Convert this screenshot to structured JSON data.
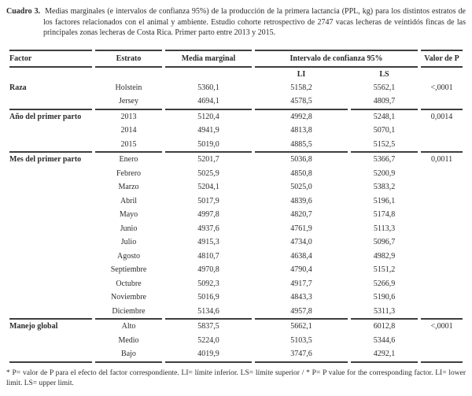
{
  "caption": {
    "label": "Cuadro 3.",
    "text": "Medias marginales (e intervalos de confianza 95%) de la producción de la primera lactancia (PPL, kg) para los distintos estratos de los factores relacionados con el animal y ambiente. Estudio cohorte retrospectivo de 2747 vacas lecheras de veintidós fincas de las principales zonas lecheras de Costa Rica. Primer parto entre 2013 y 2015."
  },
  "table": {
    "headers": {
      "factor": "Factor",
      "estrato": "Estrato",
      "media": "Media marginal",
      "ic": "Intervalo de confianza 95%",
      "li": "LI",
      "ls": "LS",
      "p": "Valor de P"
    },
    "sections": [
      {
        "factor": "Raza",
        "rows": [
          {
            "estrato": "Holstein",
            "media": "5360,1",
            "li": "5158,2",
            "ls": "5562,1",
            "p": "<,0001"
          },
          {
            "estrato": "Jersey",
            "media": "4694,1",
            "li": "4578,5",
            "ls": "4809,7",
            "p": ""
          }
        ]
      },
      {
        "factor": "Año del primer parto",
        "rows": [
          {
            "estrato": "2013",
            "media": "5120,4",
            "li": "4992,8",
            "ls": "5248,1",
            "p": "0,0014"
          },
          {
            "estrato": "2014",
            "media": "4941,9",
            "li": "4813,8",
            "ls": "5070,1",
            "p": ""
          },
          {
            "estrato": "2015",
            "media": "5019,0",
            "li": "4885,5",
            "ls": "5152,5",
            "p": ""
          }
        ]
      },
      {
        "factor": "Mes del primer parto",
        "rows": [
          {
            "estrato": "Enero",
            "media": "5201,7",
            "li": "5036,8",
            "ls": "5366,7",
            "p": "0,0011"
          },
          {
            "estrato": "Febrero",
            "media": "5025,9",
            "li": "4850,8",
            "ls": "5200,9",
            "p": ""
          },
          {
            "estrato": "Marzo",
            "media": "5204,1",
            "li": "5025,0",
            "ls": "5383,2",
            "p": ""
          },
          {
            "estrato": "Abril",
            "media": "5017,9",
            "li": "4839,6",
            "ls": "5196,1",
            "p": ""
          },
          {
            "estrato": "Mayo",
            "media": "4997,8",
            "li": "4820,7",
            "ls": "5174,8",
            "p": ""
          },
          {
            "estrato": "Junio",
            "media": "4937,6",
            "li": "4761,9",
            "ls": "5113,3",
            "p": ""
          },
          {
            "estrato": "Julio",
            "media": "4915,3",
            "li": "4734,0",
            "ls": "5096,7",
            "p": ""
          },
          {
            "estrato": "Agosto",
            "media": "4810,7",
            "li": "4638,4",
            "ls": "4982,9",
            "p": ""
          },
          {
            "estrato": "Septiembre",
            "media": "4970,8",
            "li": "4790,4",
            "ls": "5151,2",
            "p": ""
          },
          {
            "estrato": "Octubre",
            "media": "5092,3",
            "li": "4917,7",
            "ls": "5266,9",
            "p": ""
          },
          {
            "estrato": "Noviembre",
            "media": "5016,9",
            "li": "4843,3",
            "ls": "5190,6",
            "p": ""
          },
          {
            "estrato": "Diciembre",
            "media": "5134,6",
            "li": "4957,8",
            "ls": "5311,3",
            "p": ""
          }
        ]
      },
      {
        "factor": "Manejo global",
        "rows": [
          {
            "estrato": "Alto",
            "media": "5837,5",
            "li": "5662,1",
            "ls": "6012,8",
            "p": "<,0001"
          },
          {
            "estrato": "Medio",
            "media": "5224,0",
            "li": "5103,5",
            "ls": "5344,6",
            "p": ""
          },
          {
            "estrato": "Bajo",
            "media": "4019,9",
            "li": "3747,6",
            "ls": "4292,1",
            "p": ""
          }
        ]
      }
    ]
  },
  "footnote": "* P= valor de P para el efecto del factor correspondiente. LI= límite inferior. LS= límite superior / * P= P value for the corresponding factor. LI= lower limit. LS= upper limit."
}
